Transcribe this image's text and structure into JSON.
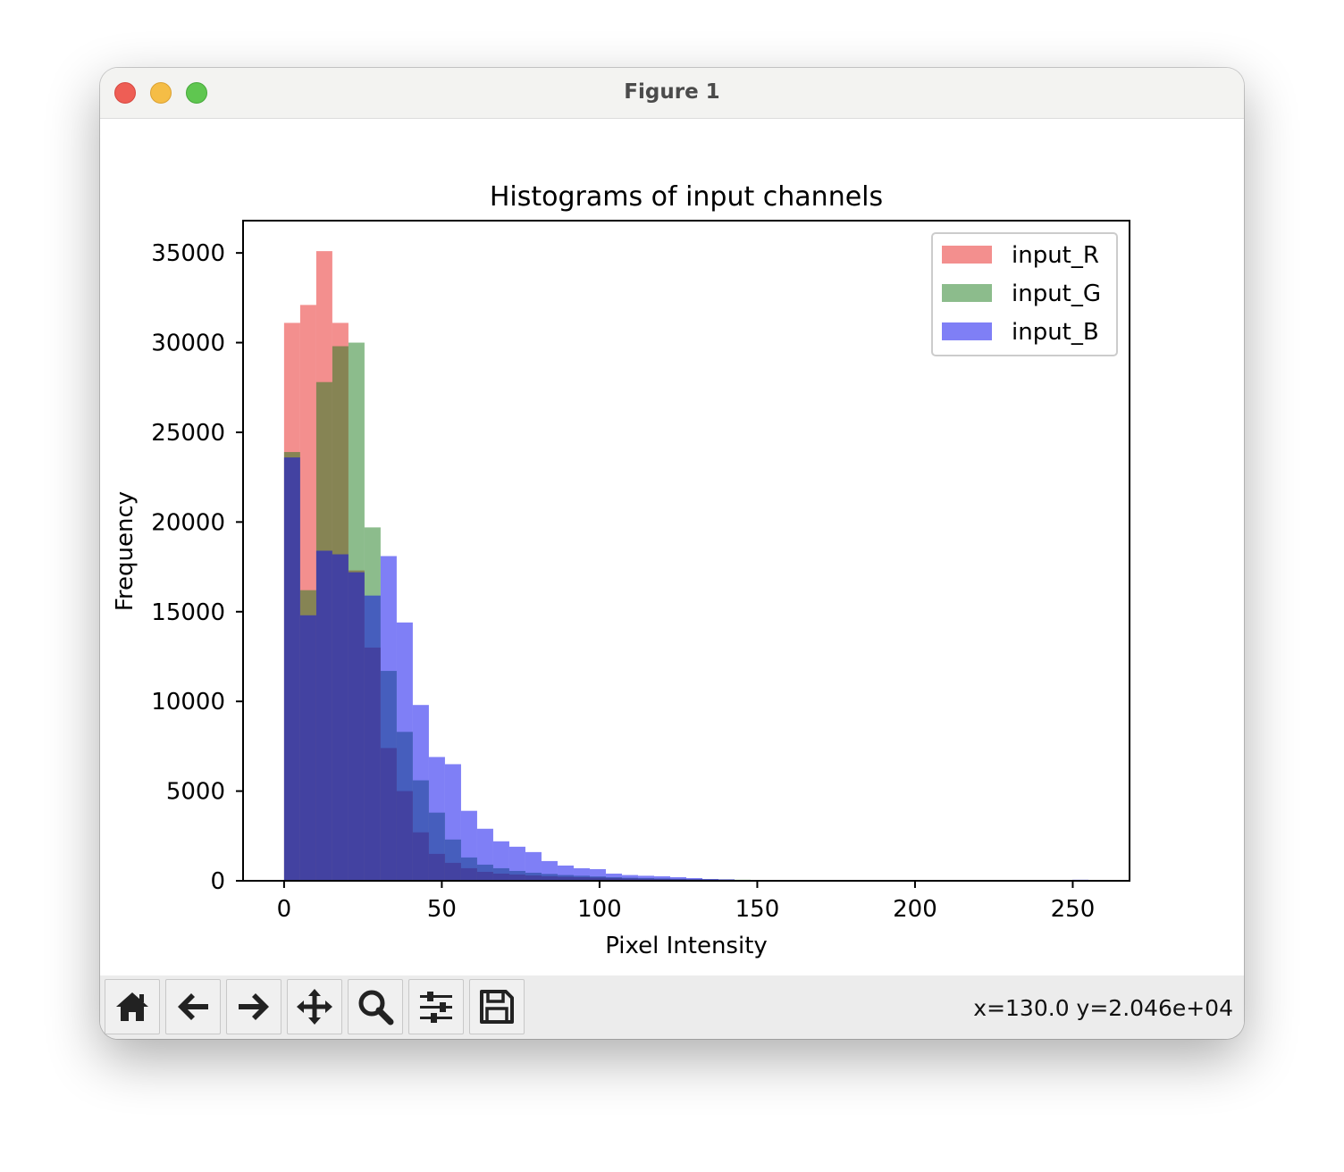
{
  "window": {
    "title": "Figure 1"
  },
  "toolbar": {
    "buttons": [
      {
        "name": "home-button",
        "icon": "home-icon"
      },
      {
        "name": "back-button",
        "icon": "arrow-left-icon"
      },
      {
        "name": "forward-button",
        "icon": "arrow-right-icon"
      },
      {
        "name": "pan-button",
        "icon": "move-icon"
      },
      {
        "name": "zoom-button",
        "icon": "magnifier-icon"
      },
      {
        "name": "configure-subplots-button",
        "icon": "sliders-icon"
      },
      {
        "name": "save-button",
        "icon": "floppy-disk-icon"
      }
    ],
    "coords": "x=130.0 y=2.046e+04"
  },
  "chart_data": {
    "type": "histogram",
    "title": "Histograms of input channels",
    "xlabel": "Pixel Intensity",
    "ylabel": "Frequency",
    "xlim": [
      -13,
      268
    ],
    "ylim": [
      0,
      36800
    ],
    "xticks": [
      0,
      50,
      100,
      150,
      200,
      250
    ],
    "xtick_labels": [
      "0",
      "50",
      "100",
      "150",
      "200",
      "250"
    ],
    "yticks": [
      0,
      5000,
      10000,
      15000,
      20000,
      25000,
      30000,
      35000
    ],
    "ytick_labels": [
      "0",
      "5000",
      "10000",
      "15000",
      "20000",
      "25000",
      "30000",
      "35000"
    ],
    "legend_position": "upper right",
    "bin_width": 5.1,
    "series": [
      {
        "name": "input_R",
        "color": "#e8201e",
        "alpha": 0.5,
        "bin_starts": [
          0,
          5.1,
          10.2,
          15.3,
          20.4,
          25.5,
          30.6,
          35.7,
          40.8,
          45.9,
          51,
          56.1,
          61.2,
          66.3,
          71.4,
          76.5,
          81.6,
          86.7,
          91.8,
          96.9,
          102,
          107.1,
          112.2,
          117.3,
          122.4,
          127.5,
          132.6,
          137.7,
          142.8,
          147.9,
          153
        ],
        "values": [
          31100,
          32100,
          35100,
          31100,
          17300,
          13000,
          7400,
          5000,
          2700,
          1500,
          1000,
          700,
          500,
          400,
          350,
          300,
          250,
          220,
          200,
          180,
          150,
          130,
          110,
          100,
          90,
          80,
          70,
          60,
          50,
          40,
          30
        ]
      },
      {
        "name": "input_G",
        "color": "#1a7a1a",
        "alpha": 0.5,
        "bin_starts": [
          0,
          5.1,
          10.2,
          15.3,
          20.4,
          25.5,
          30.6,
          35.7,
          40.8,
          45.9,
          51,
          56.1,
          61.2,
          66.3,
          71.4,
          76.5,
          81.6,
          86.7,
          91.8,
          96.9,
          102,
          107.1,
          112.2,
          117.3,
          122.4,
          127.5,
          132.6,
          137.7,
          142.8,
          147.9,
          153
        ],
        "values": [
          23900,
          16200,
          27800,
          29800,
          30000,
          19700,
          11700,
          8300,
          5600,
          3800,
          2300,
          1300,
          900,
          700,
          550,
          450,
          380,
          320,
          280,
          240,
          200,
          170,
          150,
          130,
          110,
          90,
          80,
          70,
          60,
          50,
          40
        ]
      },
      {
        "name": "input_B",
        "color": "#0000ee",
        "alpha": 0.5,
        "bin_starts": [
          0,
          5.1,
          10.2,
          15.3,
          20.4,
          25.5,
          30.6,
          35.7,
          40.8,
          45.9,
          51,
          56.1,
          61.2,
          66.3,
          71.4,
          76.5,
          81.6,
          86.7,
          91.8,
          96.9,
          102,
          107.1,
          112.2,
          117.3,
          122.4,
          127.5,
          132.6,
          137.7,
          142.8,
          147.9,
          153,
          249.9
        ],
        "values": [
          23600,
          14800,
          18400,
          18200,
          17200,
          15900,
          18100,
          14400,
          9800,
          6900,
          6500,
          3900,
          2900,
          2200,
          1900,
          1600,
          1100,
          850,
          700,
          650,
          400,
          320,
          280,
          250,
          200,
          150,
          100,
          80,
          50,
          30,
          20,
          60
        ]
      }
    ]
  }
}
